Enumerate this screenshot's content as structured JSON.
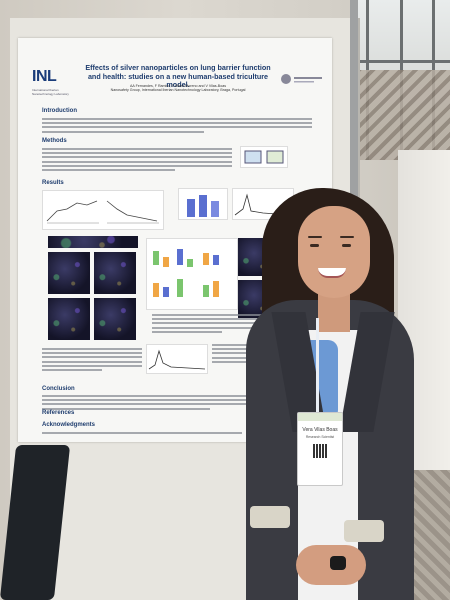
{
  "poster": {
    "logo": "INL",
    "logo_sub": "International Iberian Nanotechnology Laboratory",
    "title": "Effects of silver nanoparticles on lung barrier function and health: studies on a new human-based triculture model.",
    "authors": "AA Fernandes, F Ramiro, E Alfaro-Moreno and V Vilas-Boas",
    "affiliation": "Nanosafety Group, International Iberian Nanotechnology Laboratory, Braga, Portugal",
    "sections": {
      "introduction": "Introduction",
      "methods": "Methods",
      "results": "Results",
      "conclusion": "Conclusion",
      "references": "References",
      "acknowledgments": "Acknowledgments"
    },
    "corner_mark": "LE"
  },
  "badge": {
    "name": "Vera Vilas Boas",
    "role": "Research Scientist"
  }
}
